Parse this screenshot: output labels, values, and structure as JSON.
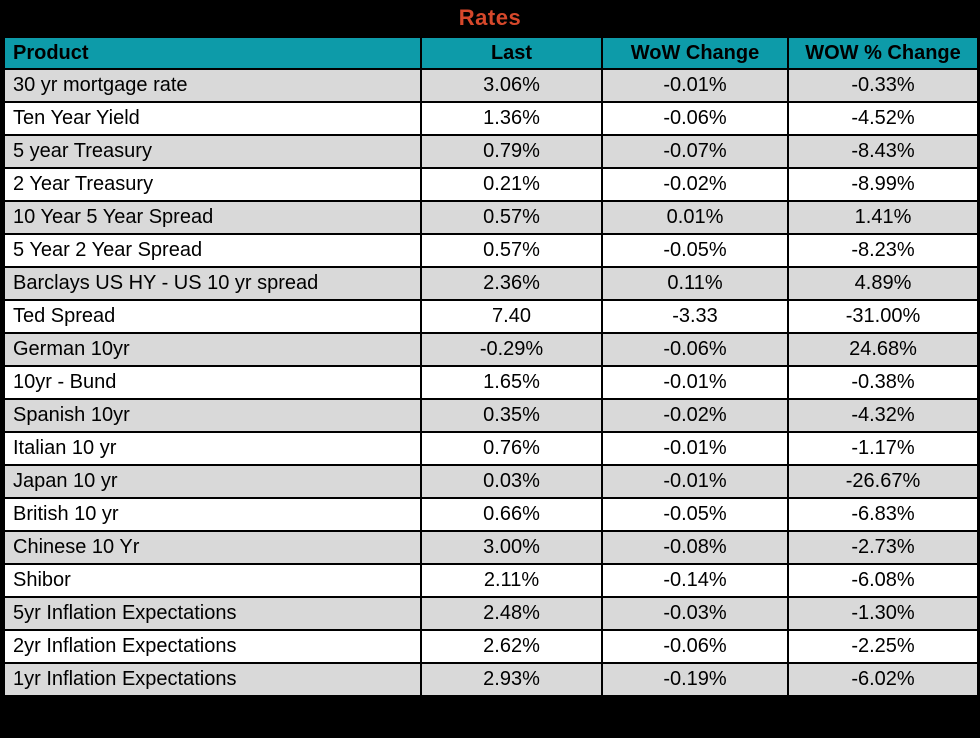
{
  "title": "Rates",
  "colors": {
    "title_bg": "#000000",
    "title_text": "#D6482B",
    "header_bg": "#0D9BA9",
    "header_text": "#000000",
    "row_shaded_bg": "#D9D9D9",
    "row_plain_bg": "#FFFFFF",
    "grid_line": "#000000"
  },
  "chart_data": {
    "type": "table",
    "title": "Rates",
    "columns": [
      "Product",
      "Last",
      "WoW Change",
      "WOW % Change"
    ],
    "rows": [
      [
        "30 yr mortgage rate",
        "3.06%",
        "-0.01%",
        "-0.33%"
      ],
      [
        "Ten Year Yield",
        "1.36%",
        "-0.06%",
        "-4.52%"
      ],
      [
        "5 year Treasury",
        "0.79%",
        "-0.07%",
        "-8.43%"
      ],
      [
        "2 Year Treasury",
        "0.21%",
        "-0.02%",
        "-8.99%"
      ],
      [
        "10 Year 5 Year Spread",
        "0.57%",
        "0.01%",
        "1.41%"
      ],
      [
        "5 Year 2 Year Spread",
        "0.57%",
        "-0.05%",
        "-8.23%"
      ],
      [
        "Barclays US HY - US 10 yr spread",
        "2.36%",
        "0.11%",
        "4.89%"
      ],
      [
        "Ted Spread",
        "7.40",
        "-3.33",
        "-31.00%"
      ],
      [
        "German 10yr",
        "-0.29%",
        "-0.06%",
        "24.68%"
      ],
      [
        "10yr - Bund",
        "1.65%",
        "-0.01%",
        "-0.38%"
      ],
      [
        "Spanish 10yr",
        "0.35%",
        "-0.02%",
        "-4.32%"
      ],
      [
        "Italian 10 yr",
        "0.76%",
        "-0.01%",
        "-1.17%"
      ],
      [
        "Japan 10 yr",
        "0.03%",
        "-0.01%",
        "-26.67%"
      ],
      [
        "British 10 yr",
        "0.66%",
        "-0.05%",
        "-6.83%"
      ],
      [
        "Chinese 10 Yr",
        "3.00%",
        "-0.08%",
        "-2.73%"
      ],
      [
        "Shibor",
        "2.11%",
        "-0.14%",
        "-6.08%"
      ],
      [
        "5yr Inflation Expectations",
        "2.48%",
        "-0.03%",
        "-1.30%"
      ],
      [
        "2yr Inflation Expectations",
        "2.62%",
        "-0.06%",
        "-2.25%"
      ],
      [
        "1yr Inflation Expectations",
        "2.93%",
        "-0.19%",
        "-6.02%"
      ]
    ],
    "layout": {
      "shaded_rows": "odd rows (1st, 3rd, ...) shaded gray, starting with first data row",
      "alignment": "Product column left-aligned, numeric columns centered",
      "legend_position": "none",
      "grid": true
    }
  }
}
